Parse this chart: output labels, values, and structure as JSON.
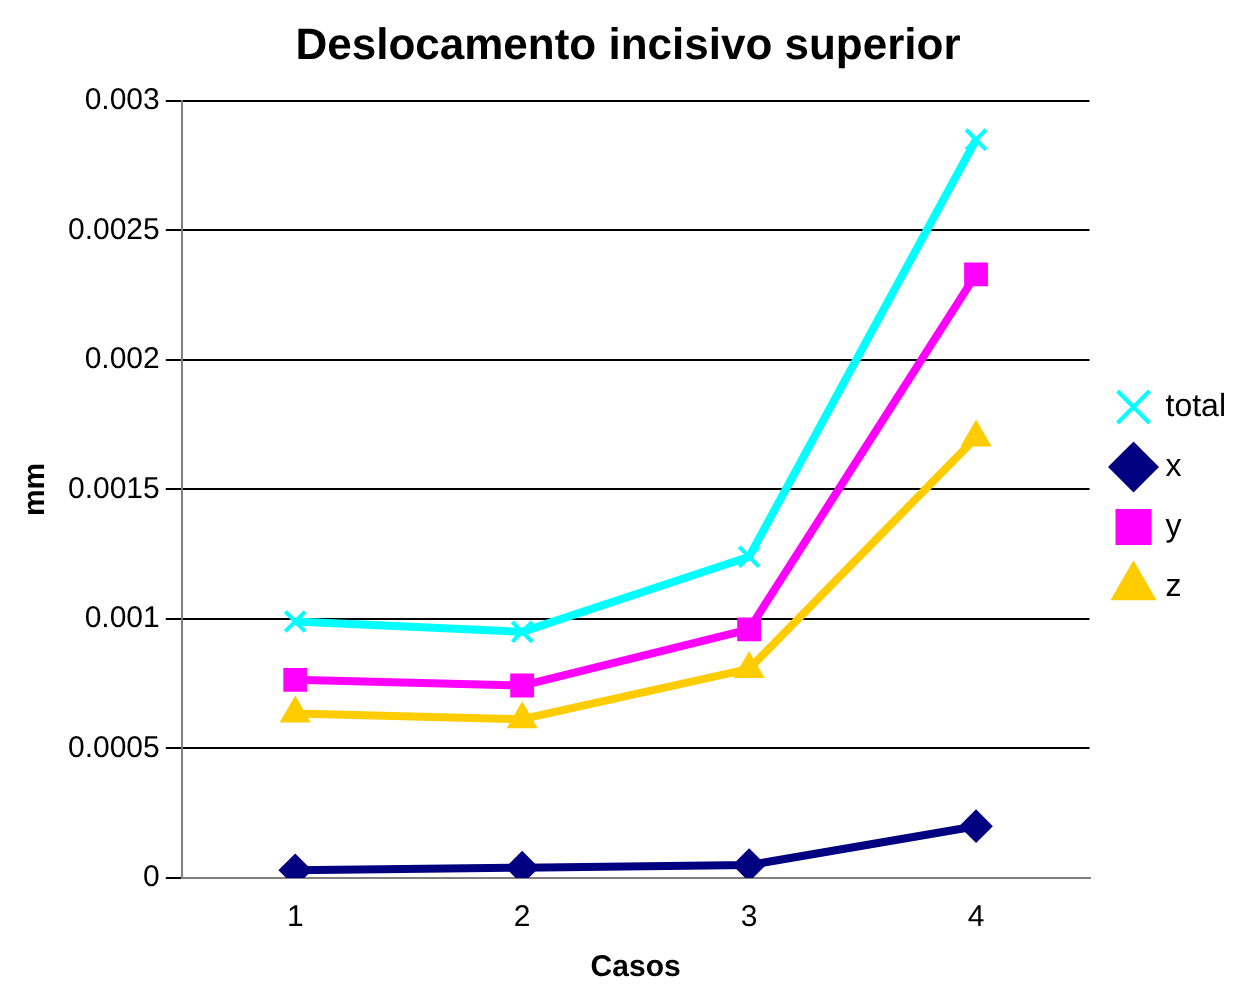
{
  "chart_data": {
    "type": "line",
    "title": "Deslocamento incisivo superior",
    "xlabel": "Casos",
    "ylabel": "mm",
    "categories": [
      "1",
      "2",
      "3",
      "4"
    ],
    "series": [
      {
        "name": "total",
        "color": "#00ffff",
        "marker": "cross",
        "values": [
          0.00099,
          0.00095,
          0.00124,
          0.00285
        ]
      },
      {
        "name": "x",
        "color": "#000080",
        "marker": "diamond",
        "values": [
          3e-05,
          4e-05,
          5e-05,
          0.0002
        ]
      },
      {
        "name": "y",
        "color": "#ff00ff",
        "marker": "square",
        "values": [
          0.000765,
          0.000743,
          0.00096,
          0.00233
        ]
      },
      {
        "name": "z",
        "color": "#ffcc00",
        "marker": "triangle",
        "values": [
          0.000635,
          0.000613,
          0.000807,
          0.0017
        ]
      }
    ],
    "ylim": [
      0,
      0.003
    ],
    "yticks": [
      0,
      0.0005,
      0.001,
      0.0015,
      0.002,
      0.0025,
      0.003
    ],
    "grid": "y",
    "legend": "right",
    "line_style": "solid"
  }
}
